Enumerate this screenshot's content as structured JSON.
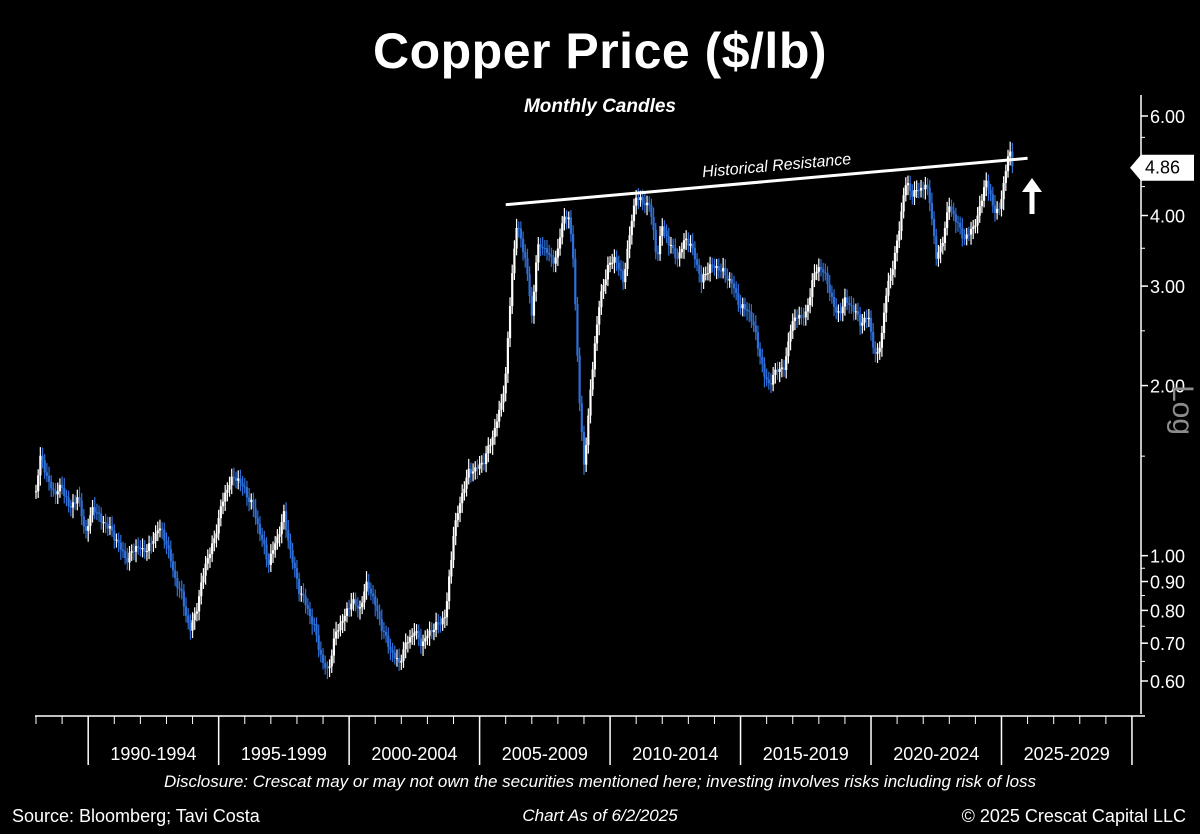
{
  "chart_data": {
    "type": "candlestick",
    "title": "Copper Price ($/lb)",
    "subtitle": "Monthly Candles",
    "y_scale": "Log",
    "ylim": [
      0.52,
      6.4
    ],
    "y_ticks": [
      {
        "value": 6.0,
        "label": "6.00"
      },
      {
        "value": 4.0,
        "label": "4.00"
      },
      {
        "value": 3.0,
        "label": "3.00"
      },
      {
        "value": 2.0,
        "label": "2.00"
      },
      {
        "value": 1.0,
        "label": "1.00"
      },
      {
        "value": 0.9,
        "label": "0.90"
      },
      {
        "value": 0.8,
        "label": "0.80"
      },
      {
        "value": 0.7,
        "label": "0.70"
      },
      {
        "value": 0.6,
        "label": "0.60"
      }
    ],
    "x_period_labels": [
      "1990-1994",
      "1995-1999",
      "2000-2004",
      "2005-2009",
      "2010-2014",
      "2015-2019",
      "2020-2024",
      "2025-2029"
    ],
    "xlim": [
      1988.0,
      2030.5
    ],
    "last_price": {
      "value": 4.86,
      "label": "4.86"
    },
    "resistance_line": {
      "label": "Historical Resistance",
      "start": {
        "x": 2006.0,
        "y": 4.18
      },
      "end": {
        "x": 2026.0,
        "y": 5.05
      }
    },
    "price_path": [
      [
        1988.0,
        1.3
      ],
      [
        1988.2,
        1.5
      ],
      [
        1988.4,
        1.35
      ],
      [
        1988.7,
        1.3
      ],
      [
        1989.0,
        1.35
      ],
      [
        1989.3,
        1.2
      ],
      [
        1989.6,
        1.25
      ],
      [
        1989.9,
        1.1
      ],
      [
        1990.2,
        1.25
      ],
      [
        1990.5,
        1.15
      ],
      [
        1990.8,
        1.1
      ],
      [
        1991.2,
        1.05
      ],
      [
        1991.5,
        1.0
      ],
      [
        1991.8,
        1.03
      ],
      [
        1992.1,
        1.0
      ],
      [
        1992.4,
        1.05
      ],
      [
        1992.7,
        1.15
      ],
      [
        1993.0,
        1.05
      ],
      [
        1993.3,
        0.9
      ],
      [
        1993.6,
        0.85
      ],
      [
        1993.9,
        0.75
      ],
      [
        1994.2,
        0.82
      ],
      [
        1994.5,
        0.95
      ],
      [
        1994.8,
        1.05
      ],
      [
        1995.1,
        1.25
      ],
      [
        1995.4,
        1.35
      ],
      [
        1995.7,
        1.35
      ],
      [
        1996.0,
        1.3
      ],
      [
        1996.3,
        1.25
      ],
      [
        1996.6,
        1.1
      ],
      [
        1996.9,
        0.95
      ],
      [
        1997.2,
        1.05
      ],
      [
        1997.5,
        1.2
      ],
      [
        1997.8,
        1.0
      ],
      [
        1998.1,
        0.85
      ],
      [
        1998.4,
        0.8
      ],
      [
        1998.7,
        0.75
      ],
      [
        1999.0,
        0.65
      ],
      [
        1999.2,
        0.62
      ],
      [
        1999.5,
        0.72
      ],
      [
        1999.8,
        0.78
      ],
      [
        2000.1,
        0.85
      ],
      [
        2000.4,
        0.8
      ],
      [
        2000.7,
        0.88
      ],
      [
        2001.0,
        0.82
      ],
      [
        2001.3,
        0.75
      ],
      [
        2001.6,
        0.68
      ],
      [
        2001.9,
        0.63
      ],
      [
        2002.2,
        0.7
      ],
      [
        2002.5,
        0.75
      ],
      [
        2002.8,
        0.7
      ],
      [
        2003.1,
        0.72
      ],
      [
        2003.4,
        0.75
      ],
      [
        2003.7,
        0.8
      ],
      [
        2004.0,
        1.1
      ],
      [
        2004.3,
        1.25
      ],
      [
        2004.6,
        1.4
      ],
      [
        2004.9,
        1.45
      ],
      [
        2005.2,
        1.5
      ],
      [
        2005.5,
        1.6
      ],
      [
        2005.8,
        1.8
      ],
      [
        2006.0,
        2.1
      ],
      [
        2006.2,
        3.0
      ],
      [
        2006.4,
        3.9
      ],
      [
        2006.6,
        3.6
      ],
      [
        2006.8,
        3.2
      ],
      [
        2007.0,
        2.6
      ],
      [
        2007.2,
        3.5
      ],
      [
        2007.4,
        3.6
      ],
      [
        2007.6,
        3.5
      ],
      [
        2007.8,
        3.3
      ],
      [
        2008.0,
        3.4
      ],
      [
        2008.2,
        3.9
      ],
      [
        2008.4,
        4.0
      ],
      [
        2008.6,
        3.4
      ],
      [
        2008.8,
        2.0
      ],
      [
        2009.0,
        1.45
      ],
      [
        2009.2,
        1.8
      ],
      [
        2009.4,
        2.3
      ],
      [
        2009.6,
        2.8
      ],
      [
        2009.9,
        3.3
      ],
      [
        2010.2,
        3.4
      ],
      [
        2010.5,
        3.0
      ],
      [
        2010.8,
        3.8
      ],
      [
        2011.0,
        4.4
      ],
      [
        2011.2,
        4.3
      ],
      [
        2011.5,
        4.2
      ],
      [
        2011.8,
        3.3
      ],
      [
        2012.0,
        3.8
      ],
      [
        2012.3,
        3.6
      ],
      [
        2012.6,
        3.4
      ],
      [
        2012.9,
        3.6
      ],
      [
        2013.2,
        3.4
      ],
      [
        2013.5,
        3.1
      ],
      [
        2013.8,
        3.3
      ],
      [
        2014.1,
        3.2
      ],
      [
        2014.4,
        3.1
      ],
      [
        2014.7,
        3.05
      ],
      [
        2015.0,
        2.8
      ],
      [
        2015.3,
        2.7
      ],
      [
        2015.6,
        2.4
      ],
      [
        2015.9,
        2.1
      ],
      [
        2016.1,
        2.05
      ],
      [
        2016.4,
        2.15
      ],
      [
        2016.7,
        2.1
      ],
      [
        2016.9,
        2.5
      ],
      [
        2017.2,
        2.7
      ],
      [
        2017.5,
        2.7
      ],
      [
        2017.8,
        3.1
      ],
      [
        2018.1,
        3.2
      ],
      [
        2018.4,
        3.0
      ],
      [
        2018.7,
        2.7
      ],
      [
        2019.0,
        2.8
      ],
      [
        2019.3,
        2.7
      ],
      [
        2019.6,
        2.6
      ],
      [
        2019.9,
        2.7
      ],
      [
        2020.2,
        2.2
      ],
      [
        2020.4,
        2.4
      ],
      [
        2020.6,
        2.9
      ],
      [
        2020.9,
        3.4
      ],
      [
        2021.1,
        3.9
      ],
      [
        2021.3,
        4.6
      ],
      [
        2021.6,
        4.3
      ],
      [
        2021.9,
        4.4
      ],
      [
        2022.1,
        4.6
      ],
      [
        2022.3,
        4.2
      ],
      [
        2022.5,
        3.4
      ],
      [
        2022.7,
        3.5
      ],
      [
        2023.0,
        4.1
      ],
      [
        2023.3,
        3.9
      ],
      [
        2023.6,
        3.7
      ],
      [
        2023.9,
        3.8
      ],
      [
        2024.1,
        3.9
      ],
      [
        2024.4,
        4.6
      ],
      [
        2024.7,
        4.2
      ],
      [
        2024.9,
        4.1
      ],
      [
        2025.1,
        4.6
      ],
      [
        2025.3,
        5.2
      ],
      [
        2025.4,
        4.7
      ],
      [
        2025.42,
        4.86
      ]
    ]
  },
  "footer": {
    "disclosure": "Disclosure: Crescat may or may not own the securities mentioned here; investing involves risks including risk of loss",
    "source": "Source: Bloomberg; Tavi Costa",
    "as_of": "Chart As of 6/2/2025",
    "copyright": "© 2025 Crescat Capital LLC"
  },
  "colors": {
    "background": "#000000",
    "up_candle": "#ffffff",
    "down_candle": "#2f6fd8",
    "axis": "#ffffff",
    "log_label": "#8c8c8c"
  }
}
